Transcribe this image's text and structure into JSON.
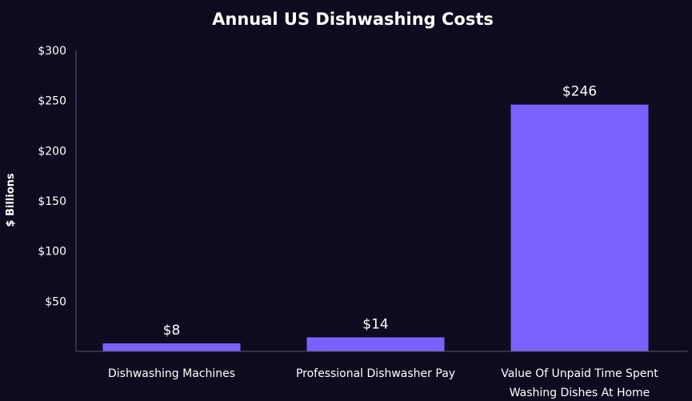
{
  "chart_data": {
    "type": "bar",
    "title": "Annual US Dishwashing Costs",
    "ylabel": "$ Billions",
    "xlabel": "",
    "categories": [
      [
        "Dishwashing Machines"
      ],
      [
        "Professional Dishwasher Pay"
      ],
      [
        "Value Of Unpaid Time Spent",
        "Washing Dishes At Home"
      ]
    ],
    "values": [
      8,
      14,
      246
    ],
    "value_labels": [
      "$8",
      "$14",
      "$246"
    ],
    "ylim": [
      0,
      300
    ],
    "yticks": [
      50,
      100,
      150,
      200,
      250,
      300
    ],
    "ytick_labels": [
      "$50",
      "$100",
      "$150",
      "$200",
      "$250",
      "$300"
    ],
    "grid": false,
    "bar_color": "#7b61ff",
    "background": "#0e0b1f",
    "axis_color": "#5a5670",
    "text_color": "#ffffff"
  }
}
